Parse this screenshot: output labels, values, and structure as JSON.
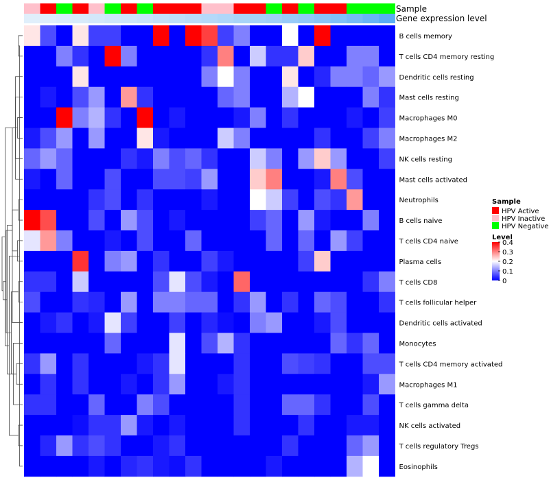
{
  "chart_data": {
    "type": "heatmap",
    "title": "",
    "annotation_tracks": [
      "Sample",
      "Gene expression level"
    ],
    "rows": [
      "B cells memory",
      "T cells CD4 memory resting",
      "Dendritic cells resting",
      "Mast cells resting",
      "Macrophages M0",
      "Macrophages M2",
      "NK cells resting",
      "Mast cells activated",
      "Neutrophils",
      "B cells naive",
      "T cells CD4 naive",
      "Plasma cells",
      "T cells CD8",
      "T cells follicular helper",
      "Dendritic cells activated",
      "Monocytes",
      "T cells CD4 memory activated",
      "Macrophages M1",
      "T cells gamma delta",
      "NK cells activated",
      "T cells regulatory  Tregs",
      "Eosinophils"
    ],
    "samples": [
      "P",
      "A",
      "N",
      "A",
      "P",
      "N",
      "A",
      "N",
      "A",
      "A",
      "A",
      "P",
      "P",
      "A",
      "A",
      "N",
      "A",
      "N",
      "A",
      "A",
      "N",
      "N",
      "N"
    ],
    "expression_level": [
      0.02,
      0.04,
      0.07,
      0.09,
      0.12,
      0.15,
      0.17,
      0.2,
      0.24,
      0.27,
      0.31,
      0.34,
      0.38,
      0.42,
      0.46,
      0.5,
      0.55,
      0.6,
      0.66,
      0.72,
      0.8,
      0.9,
      1.0
    ],
    "values": [
      [
        0.22,
        0.06,
        0,
        0.22,
        0.05,
        0.05,
        0,
        0,
        0.4,
        0,
        0.4,
        0.35,
        0.05,
        0.1,
        0,
        0,
        0.2,
        0,
        0.4,
        0,
        0,
        0,
        0
      ],
      [
        0,
        0,
        0.1,
        0.04,
        0,
        0.4,
        0.1,
        0,
        0,
        0,
        0,
        0.04,
        0.3,
        0,
        0.16,
        0.04,
        0.04,
        0.24,
        0,
        0,
        0.1,
        0.1,
        0
      ],
      [
        0,
        0,
        0,
        0.22,
        0,
        0,
        0,
        0,
        0,
        0,
        0,
        0.1,
        0.2,
        0.1,
        0,
        0,
        0.22,
        0,
        0.03,
        0.1,
        0.1,
        0.08,
        0.12
      ],
      [
        0,
        0.02,
        0,
        0.06,
        0.12,
        0,
        0.28,
        0.04,
        0,
        0,
        0,
        0,
        0.08,
        0.1,
        0,
        0,
        0.14,
        0.2,
        0,
        0,
        0,
        0.1,
        0.04
      ],
      [
        0,
        0,
        0.4,
        0.1,
        0.14,
        0.04,
        0,
        0.4,
        0,
        0.02,
        0,
        0,
        0,
        0.02,
        0.1,
        0,
        0.04,
        0,
        0,
        0,
        0.02,
        0,
        0.05
      ],
      [
        0.02,
        0.06,
        0.12,
        0,
        0.12,
        0,
        0,
        0.22,
        0.02,
        0,
        0,
        0,
        0.16,
        0.1,
        0,
        0,
        0,
        0,
        0.04,
        0,
        0,
        0.05,
        0.1
      ],
      [
        0.08,
        0.12,
        0.08,
        0,
        0,
        0,
        0.04,
        0.02,
        0.1,
        0.06,
        0.08,
        0.04,
        0,
        0,
        0.16,
        0.1,
        0,
        0.12,
        0.24,
        0.12,
        0,
        0,
        0.05
      ],
      [
        0.02,
        0,
        0.08,
        0,
        0,
        0.06,
        0,
        0,
        0.06,
        0.06,
        0.05,
        0.12,
        0,
        0,
        0.24,
        0.3,
        0,
        0,
        0.02,
        0.3,
        0.06,
        0,
        0
      ],
      [
        0,
        0,
        0,
        0,
        0.04,
        0.06,
        0,
        0.04,
        0,
        0,
        0,
        0.02,
        0,
        0,
        0.2,
        0.16,
        0.05,
        0,
        0.06,
        0.04,
        0.28,
        0,
        0
      ],
      [
        0.4,
        0.34,
        0,
        0,
        0.06,
        0,
        0.12,
        0.06,
        0,
        0.02,
        0,
        0,
        0,
        0,
        0.05,
        0.08,
        0,
        0.12,
        0.02,
        0,
        0,
        0.1,
        0
      ],
      [
        0.18,
        0.28,
        0.1,
        0,
        0,
        0.02,
        0,
        0.06,
        0,
        0,
        0.08,
        0,
        0,
        0,
        0,
        0.08,
        0,
        0.08,
        0,
        0.12,
        0.05,
        0,
        0
      ],
      [
        0,
        0,
        0,
        0.36,
        0,
        0.1,
        0.12,
        0,
        0.04,
        0,
        0,
        0.05,
        0.02,
        0,
        0,
        0,
        0,
        0.05,
        0.24,
        0,
        0,
        0,
        0
      ],
      [
        0.04,
        0.04,
        0,
        0.16,
        0,
        0,
        0,
        0,
        0.06,
        0.18,
        0.06,
        0.02,
        0,
        0.32,
        0,
        0,
        0,
        0,
        0,
        0,
        0,
        0.04,
        0.1
      ],
      [
        0.06,
        0,
        0,
        0.04,
        0.03,
        0,
        0.12,
        0,
        0.1,
        0.1,
        0.08,
        0.08,
        0,
        0.04,
        0.12,
        0,
        0.04,
        0,
        0.08,
        0.06,
        0,
        0,
        0.04
      ],
      [
        0,
        0.02,
        0.04,
        0,
        0.02,
        0.18,
        0.05,
        0,
        0,
        0.05,
        0,
        0.03,
        0.01,
        0,
        0.1,
        0.12,
        0,
        0,
        0.02,
        0.06,
        0,
        0,
        0
      ],
      [
        0,
        0,
        0,
        0,
        0,
        0.08,
        0,
        0,
        0,
        0.18,
        0,
        0.06,
        0.14,
        0.04,
        0,
        0,
        0,
        0,
        0,
        0.08,
        0.04,
        0.08,
        0
      ],
      [
        0.04,
        0.12,
        0,
        0.04,
        0,
        0,
        0,
        0.02,
        0.04,
        0.18,
        0,
        0,
        0,
        0.04,
        0,
        0,
        0.06,
        0.05,
        0.04,
        0,
        0,
        0.06,
        0.06
      ],
      [
        0,
        0.04,
        0,
        0.04,
        0,
        0,
        0.02,
        0,
        0.04,
        0.12,
        0,
        0,
        0.02,
        0.04,
        0,
        0,
        0,
        0,
        0,
        0,
        0,
        0.02,
        0.12
      ],
      [
        0.04,
        0.04,
        0,
        0,
        0.08,
        0,
        0,
        0.1,
        0.06,
        0,
        0,
        0,
        0,
        0.04,
        0,
        0,
        0.08,
        0.08,
        0.04,
        0,
        0,
        0.06,
        0
      ],
      [
        0,
        0,
        0,
        0.01,
        0.04,
        0.04,
        0.12,
        0.02,
        0,
        0.02,
        0,
        0,
        0,
        0.04,
        0,
        0,
        0,
        0.04,
        0,
        0,
        0.02,
        0.02,
        0
      ],
      [
        0,
        0.03,
        0.12,
        0.04,
        0.06,
        0.04,
        0,
        0,
        0.02,
        0.04,
        0,
        0,
        0,
        0,
        0,
        0,
        0.04,
        0,
        0,
        0,
        0.08,
        0.12,
        0
      ],
      [
        0,
        0,
        0,
        0,
        0.02,
        0,
        0.03,
        0.04,
        0.02,
        0.01,
        0.04,
        0,
        0,
        0,
        0,
        0.02,
        0,
        0,
        0,
        0,
        0.14,
        0.2,
        0
      ]
    ],
    "value_range": [
      0,
      0.4
    ],
    "colors": {
      "low": "#0000ff",
      "mid": "#ffffff",
      "high": "#ff0000",
      "HPV Active": "#ff0000",
      "HPV Inactive": "#ffc0cb",
      "HPV Negative": "#00ff00",
      "expr_low": "#e3f0fb",
      "expr_high": "#5aadf5"
    },
    "legend_sample": {
      "title": "Sample",
      "entries": [
        {
          "code": "A",
          "label": "HPV Active",
          "color": "#ff0000"
        },
        {
          "code": "P",
          "label": "HPV Inactive",
          "color": "#ffc0cb"
        },
        {
          "code": "N",
          "label": "HPV Negative",
          "color": "#00ff00"
        }
      ]
    },
    "legend_level": {
      "title": "Level",
      "ticks": [
        0.4,
        0.3,
        0.2,
        0.1,
        0
      ],
      "tick_labels": [
        "0.4",
        "0.3",
        "0.2",
        "0.1",
        "0"
      ]
    },
    "row_dendrogram": {
      "merges": [
        [
          0,
          1,
          0.2
        ],
        [
          5,
          4,
          0.25
        ],
        [
          8,
          9,
          0.2
        ],
        [
          10,
          11,
          0.25
        ],
        [
          12,
          13,
          0.2
        ],
        [
          16,
          17,
          0.3
        ],
        [
          19,
          20,
          0.2
        ],
        [
          21,
          22,
          0.15
        ],
        [
          3,
          6,
          0.35
        ],
        [
          2,
          7,
          0.35
        ],
        [
          15,
          18,
          0.45
        ],
        [
          14,
          23,
          0.5
        ],
        [
          24,
          25,
          0.5
        ],
        [
          26,
          27,
          0.55
        ],
        [
          28,
          29,
          0.65
        ],
        [
          30,
          31,
          0.7
        ],
        [
          32,
          33,
          0.75
        ],
        [
          34,
          35,
          0.8
        ],
        [
          36,
          37,
          0.85
        ],
        [
          38,
          39,
          0.95
        ],
        [
          40,
          41,
          1.0
        ]
      ]
    }
  }
}
